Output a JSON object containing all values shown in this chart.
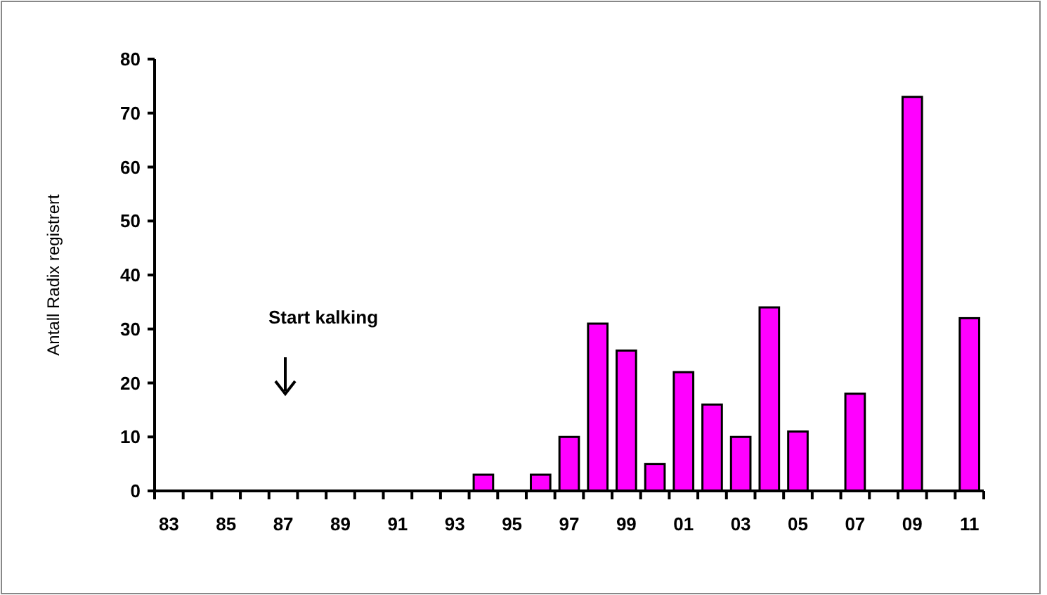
{
  "chart_data": {
    "type": "bar",
    "ylabel": "Antall Radix registrert",
    "categories": [
      "83",
      null,
      "85",
      null,
      "87",
      null,
      "89",
      null,
      "91",
      null,
      "93",
      null,
      "95",
      null,
      "97",
      null,
      "99",
      null,
      "01",
      null,
      "03",
      null,
      "05",
      null,
      "07",
      null,
      "09",
      null,
      "11"
    ],
    "values": [
      0,
      0,
      0,
      0,
      0,
      0,
      0,
      0,
      0,
      0,
      0,
      3,
      0,
      3,
      10,
      31,
      26,
      5,
      22,
      16,
      10,
      34,
      11,
      0,
      18,
      0,
      73,
      0,
      32
    ],
    "color": "#ff00ff",
    "ylim": [
      0,
      80
    ],
    "yticks": [
      0,
      10,
      20,
      30,
      40,
      50,
      60,
      70,
      80
    ],
    "grid": false,
    "annotations": [
      "Start kalking"
    ]
  }
}
